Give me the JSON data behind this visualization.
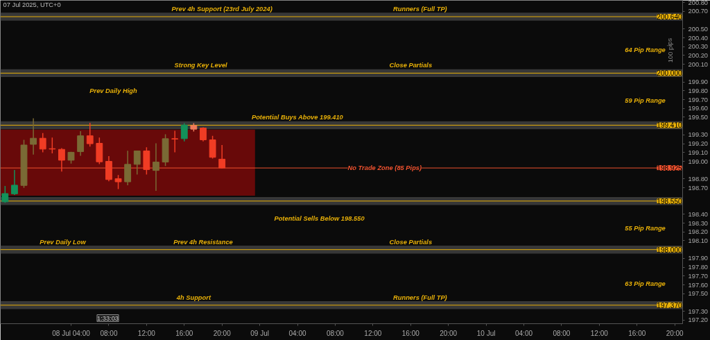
{
  "chart_data": {
    "type": "candlestick",
    "x": [
      "2025-07-07T21:00",
      "2025-07-07T22:00",
      "2025-07-07T23:00",
      "2025-07-08T00:00",
      "2025-07-08T01:00",
      "2025-07-08T02:00",
      "2025-07-08T03:00",
      "2025-07-08T04:00",
      "2025-07-08T05:00",
      "2025-07-08T06:00",
      "2025-07-08T07:00",
      "2025-07-08T08:00",
      "2025-07-08T09:00",
      "2025-07-08T10:00",
      "2025-07-08T11:00",
      "2025-07-08T12:00",
      "2025-07-08T13:00",
      "2025-07-08T14:00",
      "2025-07-08T15:00",
      "2025-07-08T16:00",
      "2025-07-08T17:00",
      "2025-07-08T18:00",
      "2025-07-08T19:00",
      "2025-07-08T20:00"
    ],
    "ohlc": [
      [
        198.542,
        198.722,
        198.53,
        198.635
      ],
      [
        198.632,
        198.902,
        198.619,
        198.73
      ],
      [
        198.727,
        199.244,
        198.699,
        199.185
      ],
      [
        199.193,
        199.488,
        199.077,
        199.262
      ],
      [
        199.262,
        199.321,
        199.103,
        199.139
      ],
      [
        199.144,
        199.27,
        199.09,
        199.139
      ],
      [
        199.136,
        199.149,
        198.884,
        199.013
      ],
      [
        199.013,
        199.108,
        198.974,
        199.103
      ],
      [
        199.11,
        199.342,
        199.064,
        199.29
      ],
      [
        199.29,
        199.437,
        199.167,
        199.2
      ],
      [
        199.205,
        199.27,
        198.969,
        198.995
      ],
      [
        199.0,
        199.059,
        198.774,
        198.794
      ],
      [
        198.804,
        198.846,
        198.686,
        198.768
      ],
      [
        198.768,
        199.121,
        198.73,
        198.966
      ],
      [
        198.966,
        199.123,
        198.851,
        199.118
      ],
      [
        199.118,
        199.159,
        198.851,
        198.907
      ],
      [
        198.897,
        199.205,
        198.666,
        198.992
      ],
      [
        198.992,
        199.308,
        198.948,
        199.257
      ],
      [
        199.257,
        199.347,
        199.103,
        199.252
      ],
      [
        199.257,
        199.432,
        199.226,
        199.411
      ],
      [
        199.406,
        199.432,
        199.339,
        199.365
      ],
      [
        199.378,
        199.385,
        199.226,
        199.244
      ],
      [
        199.244,
        199.29,
        199.031,
        199.046
      ],
      [
        199.025,
        199.185,
        198.918,
        198.925
      ]
    ],
    "colors": [
      "#13915a",
      "#13915a",
      "#7a6a35",
      "#7a6a35",
      "#f03c24",
      "#f03c24",
      "#f03c24",
      "#7a6a35",
      "#7a6a35",
      "#f03c24",
      "#f03c24",
      "#f03c24",
      "#f03c24",
      "#7a6a35",
      "#7a6a35",
      "#f03c24",
      "#7a6a35",
      "#7a6a35",
      "#f03c24",
      "#13915a",
      "#f07a5a",
      "#f03c24",
      "#f03c24",
      "#f03c24"
    ],
    "xlim": [
      "2025-07-07T20:30",
      "2025-07-10T20:50"
    ],
    "xticks": [
      {
        "value": "2025-07-08T04:00",
        "label": "08 Jul 04:00"
      },
      {
        "value": "2025-07-08T08:00",
        "label": "08:00"
      },
      {
        "value": "2025-07-08T12:00",
        "label": "12:00"
      },
      {
        "value": "2025-07-08T16:00",
        "label": "16:00"
      },
      {
        "value": "2025-07-08T20:00",
        "label": "20:00"
      },
      {
        "value": "2025-07-09T00:00",
        "label": "09 Jul"
      },
      {
        "value": "2025-07-09T04:00",
        "label": "04:00"
      },
      {
        "value": "2025-07-09T08:00",
        "label": "08:00"
      },
      {
        "value": "2025-07-09T12:00",
        "label": "12:00"
      },
      {
        "value": "2025-07-09T16:00",
        "label": "16:00"
      },
      {
        "value": "2025-07-09T20:00",
        "label": "20:00"
      },
      {
        "value": "2025-07-10T00:00",
        "label": "10 Jul"
      },
      {
        "value": "2025-07-10T04:00",
        "label": "04:00"
      },
      {
        "value": "2025-07-10T08:00",
        "label": "08:00"
      },
      {
        "value": "2025-07-10T12:00",
        "label": "12:00"
      },
      {
        "value": "2025-07-10T16:00",
        "label": "16:00"
      },
      {
        "value": "2025-07-10T20:00",
        "label": "20:00"
      }
    ],
    "ylim": [
      197.16,
      200.825
    ],
    "yticks": [
      {
        "value": 197.2,
        "label": "197.20"
      },
      {
        "value": 197.3,
        "label": "197.30"
      },
      {
        "value": 197.5,
        "label": "197.50"
      },
      {
        "value": 197.6,
        "label": "197.60"
      },
      {
        "value": 197.7,
        "label": "197.70"
      },
      {
        "value": 197.8,
        "label": "197.80"
      },
      {
        "value": 197.9,
        "label": "197.90"
      },
      {
        "value": 198.1,
        "label": "198.10"
      },
      {
        "value": 198.2,
        "label": "198.20"
      },
      {
        "value": 198.3,
        "label": "198.30"
      },
      {
        "value": 198.4,
        "label": "198.40"
      },
      {
        "value": 198.7,
        "label": "198.70"
      },
      {
        "value": 198.8,
        "label": "198.80"
      },
      {
        "value": 199.0,
        "label": "199.00"
      },
      {
        "value": 199.1,
        "label": "199.10"
      },
      {
        "value": 199.2,
        "label": "199.20"
      },
      {
        "value": 199.3,
        "label": "199.30"
      },
      {
        "value": 199.5,
        "label": "199.50"
      },
      {
        "value": 199.6,
        "label": "199.60"
      },
      {
        "value": 199.7,
        "label": "199.70"
      },
      {
        "value": 199.8,
        "label": "199.80"
      },
      {
        "value": 199.9,
        "label": "199.90"
      },
      {
        "value": 200.1,
        "label": "200.10"
      },
      {
        "value": 200.2,
        "label": "200.20"
      },
      {
        "value": 200.3,
        "label": "200.30"
      },
      {
        "value": 200.4,
        "label": "200.40"
      },
      {
        "value": 200.5,
        "label": "200.50"
      },
      {
        "value": 200.7,
        "label": "200.70"
      },
      {
        "value": 200.8,
        "label": "200.80"
      }
    ],
    "bands": [
      {
        "axis": "y",
        "from": 200.595,
        "to": 200.685,
        "color": "#3a3a3a"
      },
      {
        "axis": "y",
        "from": 199.955,
        "to": 200.045,
        "color": "#3a3a3a"
      },
      {
        "axis": "y",
        "from": 199.365,
        "to": 199.455,
        "color": "#3a3a3a"
      },
      {
        "axis": "y",
        "from": 198.505,
        "to": 198.595,
        "color": "#3a3a3a"
      },
      {
        "axis": "y",
        "from": 197.955,
        "to": 198.045,
        "color": "#3a3a3a"
      },
      {
        "axis": "y",
        "from": 197.325,
        "to": 197.415,
        "color": "#3a3a3a"
      },
      {
        "axis": "y",
        "from": 198.612,
        "to": 199.36,
        "color": "#6e0a0a"
      }
    ],
    "ref_lines": [
      {
        "axis": "y",
        "value": 200.64,
        "label": "200.640",
        "color": "#e8b008"
      },
      {
        "axis": "y",
        "value": 200.0,
        "label": "200.000",
        "color": "#e8b008"
      },
      {
        "axis": "y",
        "value": 199.41,
        "label": "199.410",
        "color": "#e8b008"
      },
      {
        "axis": "y",
        "value": 198.925,
        "label": "198.925",
        "color": "#f0522f"
      },
      {
        "axis": "y",
        "value": 198.55,
        "label": "198.550",
        "color": "#e8b008"
      },
      {
        "axis": "y",
        "value": 198.0,
        "label": "198.000",
        "color": "#e8b008"
      },
      {
        "axis": "y",
        "value": 197.37,
        "label": "197.370",
        "color": "#e8b008"
      }
    ],
    "annotations": [
      "07 Jul 2025, UTC+0",
      "1:33:03",
      "100 pips",
      "64 Pip Range",
      "59 Pip Range",
      "55 Pip Range",
      "63 Pip Range",
      "Prev Daily High",
      "Prev Daily Low",
      "Potential Sells Below 198.550",
      {
        "text": "Prev 4h Support (23rd July 2024)",
        "x": "2025-07-08T20:00",
        "y": 200.64
      },
      {
        "text": "Runners (Full TP)",
        "x": "2025-07-09T17:00",
        "y": 200.64
      },
      {
        "text": "Strong Key Level",
        "x": "2025-07-08T17:45",
        "y": 200.0
      },
      {
        "text": "Close Partials",
        "x": "2025-07-09T16:00",
        "y": 200.0
      },
      {
        "text": "Potential Buys Above 199.410",
        "x": "2025-07-09T04:00",
        "y": 199.41
      },
      {
        "text": "No Trade Zone (85 Pips)",
        "x": "2025-07-09T13:15",
        "y": 198.925
      },
      {
        "text": "Prev 4h Resistance",
        "x": "2025-07-08T18:00",
        "y": 198.0
      },
      {
        "text": "Close Partials",
        "x": "2025-07-09T16:00",
        "y": 198.0
      },
      {
        "text": "4h Support",
        "x": "2025-07-08T17:00",
        "y": 197.37
      },
      {
        "text": "Runners (Full TP)",
        "x": "2025-07-09T17:00",
        "y": 197.37
      }
    ]
  }
}
